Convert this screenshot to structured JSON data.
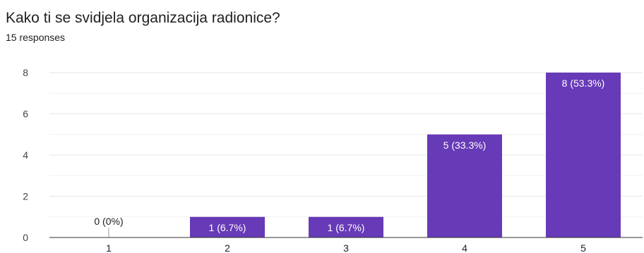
{
  "question": {
    "title": "Kako ti se svidjela organizacija radionice?",
    "responses": "15 responses"
  },
  "colors": {
    "bar": "#673ab7",
    "grid": "#e6e6e6",
    "axis": "#333333",
    "label_inside": "#ffffff",
    "label_outside": "#202124"
  },
  "chart_data": {
    "type": "bar",
    "categories": [
      "1",
      "2",
      "3",
      "4",
      "5"
    ],
    "values": [
      0,
      1,
      1,
      5,
      8
    ],
    "data_labels": [
      "0 (0%)",
      "1 (6.7%)",
      "1 (6.7%)",
      "5 (33.3%)",
      "8 (53.3%)"
    ],
    "ylim": [
      0,
      8
    ],
    "yticks": [
      "0",
      "2",
      "4",
      "6",
      "8"
    ],
    "grid": true,
    "xlabel": "",
    "ylabel": ""
  }
}
